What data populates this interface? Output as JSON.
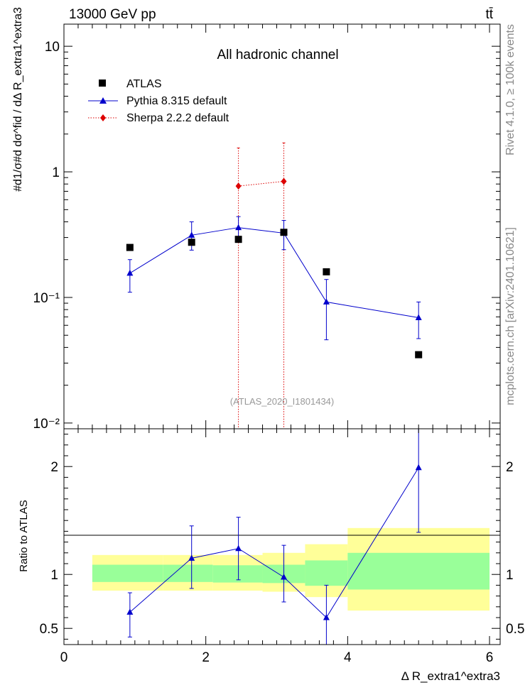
{
  "header": {
    "left": "13000 GeV pp",
    "right": "tt̄",
    "side_top": "Rivet 4.1.0, ≥ 100k events",
    "side_bottom": "mcplots.cern.ch [arXiv:2401.10621]"
  },
  "chart_data": [
    {
      "type": "scatter",
      "yscale": "log",
      "title": "All hadronic channel",
      "watermark": "(ATLAS_2020_I1801434)",
      "ylabel": "#d1/σ#d dσ^fid / dΔ R_extra1^extra3",
      "ylim": [
        0.009,
        15
      ],
      "xlim": [
        0,
        6.15
      ],
      "ytick_labels": [
        "10",
        "1",
        "10⁻¹",
        "10⁻²"
      ],
      "legend": [
        {
          "label": "ATLAS",
          "color": "#000000",
          "marker": "square"
        },
        {
          "label": "Pythia 8.315 default",
          "color": "#0000cc",
          "marker": "triangle"
        },
        {
          "label": "Sherpa 2.2.2 default",
          "color": "#dd0000",
          "marker": "diamond"
        }
      ],
      "series": [
        {
          "name": "ATLAS",
          "x": [
            0.93,
            1.8,
            2.46,
            3.1,
            3.7,
            5.0
          ],
          "y": [
            0.25,
            0.275,
            0.29,
            0.33,
            0.16,
            0.035
          ]
        },
        {
          "name": "Pythia 8.315 default",
          "x": [
            0.93,
            1.8,
            2.46,
            3.1,
            3.7,
            5.0
          ],
          "y": [
            0.156,
            0.313,
            0.36,
            0.325,
            0.092,
            0.069
          ],
          "err_low": [
            0.11,
            0.238,
            0.29,
            0.24,
            0.046,
            0.047
          ],
          "err_high": [
            0.2,
            0.4,
            0.44,
            0.41,
            0.139,
            0.092
          ]
        },
        {
          "name": "Sherpa 2.2.2 default",
          "x": [
            2.46,
            3.1
          ],
          "y": [
            0.77,
            0.84
          ],
          "err_low": [
            0.009,
            0.009
          ],
          "err_high": [
            1.55,
            1.7
          ]
        }
      ]
    },
    {
      "type": "scatter",
      "ylabel": "Ratio to ATLAS",
      "xlabel": "Δ R_extra1^extra3",
      "xlim": [
        0,
        6.15
      ],
      "ylim": [
        0.35,
        2.35
      ],
      "xticks": [
        "0",
        "2",
        "4",
        "6"
      ],
      "yticks": [
        "0.5",
        "1",
        "2"
      ],
      "bands": [
        {
          "x0": 0.4,
          "x1": 1.4,
          "yellow": [
            0.85,
            1.18
          ],
          "green": [
            0.93,
            1.09
          ]
        },
        {
          "x0": 1.4,
          "x1": 2.1,
          "yellow": [
            0.85,
            1.18
          ],
          "green": [
            0.93,
            1.09
          ]
        },
        {
          "x0": 2.1,
          "x1": 2.8,
          "yellow": [
            0.85,
            1.18
          ],
          "green": [
            0.925,
            1.085
          ]
        },
        {
          "x0": 2.8,
          "x1": 3.4,
          "yellow": [
            0.84,
            1.2
          ],
          "green": [
            0.92,
            1.09
          ]
        },
        {
          "x0": 3.4,
          "x1": 4.0,
          "yellow": [
            0.79,
            1.28
          ],
          "green": [
            0.895,
            1.13
          ]
        },
        {
          "x0": 4.0,
          "x1": 6.0,
          "yellow": [
            0.665,
            1.43
          ],
          "green": [
            0.86,
            1.2
          ]
        }
      ],
      "series": [
        {
          "name": "Pythia 8.315 default",
          "x": [
            0.93,
            1.8,
            2.46,
            3.1,
            3.7,
            5.0
          ],
          "y": [
            0.65,
            1.15,
            1.24,
            0.975,
            0.6,
            1.99
          ],
          "err_low": [
            0.42,
            0.87,
            0.95,
            0.745,
            0.35,
            1.39
          ],
          "err_high": [
            0.83,
            1.45,
            1.53,
            1.27,
            0.9,
            2.35
          ]
        }
      ]
    }
  ]
}
